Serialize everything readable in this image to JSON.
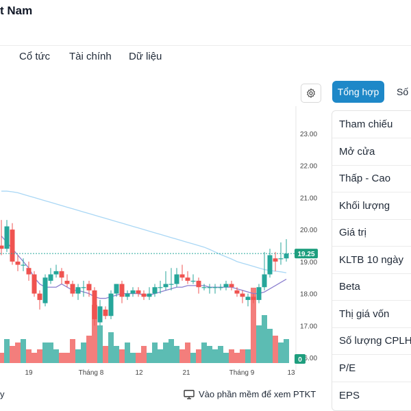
{
  "header": {
    "title": "t Nam"
  },
  "tabs": [
    {
      "label": "Cổ tức"
    },
    {
      "label": "Tài chính"
    },
    {
      "label": "Dữ liệu"
    }
  ],
  "icons": {
    "settings": "gear-icon",
    "monitor": "monitor-icon"
  },
  "colors": {
    "up": "#26a69a",
    "down": "#ef5350",
    "ma_short": "#8b7fcf",
    "ma_long": "#a9d7f5",
    "accent": "#1e88c8"
  },
  "chart_data": {
    "type": "candlestick",
    "y_ticks": [
      "23.00",
      "22.00",
      "21.00",
      "20.00",
      "19.00",
      "18.00",
      "17.00",
      "16.00"
    ],
    "ylim": [
      16,
      23.5
    ],
    "x_ticks": [
      "19",
      "Tháng 8",
      "12",
      "21",
      "Tháng 9",
      "13"
    ],
    "last_price_label": "19.25",
    "last_price": 19.25,
    "volume_label": "0",
    "candles": [
      [
        19.5,
        19.4,
        20.3,
        19.2
      ],
      [
        19.4,
        20.1,
        20.3,
        19.3
      ],
      [
        20.0,
        19.0,
        20.2,
        18.9
      ],
      [
        19.0,
        18.9,
        19.2,
        18.7
      ],
      [
        18.9,
        18.9,
        19.1,
        18.7
      ],
      [
        18.8,
        18.6,
        19.0,
        18.4
      ],
      [
        18.6,
        18.0,
        18.7,
        17.9
      ],
      [
        18.0,
        17.8,
        18.1,
        17.5
      ],
      [
        17.7,
        18.5,
        18.6,
        17.6
      ],
      [
        18.4,
        18.6,
        18.8,
        18.3
      ],
      [
        18.6,
        18.7,
        18.9,
        18.5
      ],
      [
        18.7,
        18.5,
        18.8,
        18.3
      ],
      [
        18.4,
        18.3,
        18.6,
        18.2
      ],
      [
        18.3,
        18.0,
        18.4,
        17.9
      ],
      [
        18.0,
        18.2,
        18.3,
        17.8
      ],
      [
        18.2,
        18.2,
        18.4,
        17.9
      ],
      [
        18.3,
        18.1,
        18.4,
        17.9
      ],
      [
        18.1,
        17.2,
        18.2,
        17.0
      ],
      [
        17.1,
        17.6,
        17.8,
        17.0
      ],
      [
        17.5,
        17.3,
        17.6,
        17.2
      ],
      [
        17.3,
        18.0,
        18.1,
        17.2
      ],
      [
        18.0,
        18.3,
        18.3,
        17.9
      ],
      [
        18.3,
        17.9,
        18.4,
        17.7
      ],
      [
        17.9,
        18.0,
        18.1,
        17.8
      ],
      [
        18.0,
        18.1,
        18.2,
        17.9
      ],
      [
        18.1,
        18.0,
        18.2,
        17.9
      ],
      [
        18.0,
        17.9,
        18.1,
        17.8
      ],
      [
        17.9,
        18.0,
        18.2,
        17.8
      ],
      [
        18.0,
        18.2,
        18.3,
        17.9
      ],
      [
        18.2,
        18.2,
        18.4,
        18.0
      ],
      [
        18.2,
        18.3,
        18.7,
        18.1
      ],
      [
        18.3,
        18.3,
        18.8,
        18.1
      ],
      [
        18.3,
        18.6,
        18.8,
        18.2
      ],
      [
        18.6,
        18.5,
        18.9,
        18.4
      ],
      [
        18.5,
        18.4,
        18.7,
        18.3
      ],
      [
        18.4,
        18.4,
        18.6,
        18.3
      ],
      [
        18.4,
        18.2,
        18.5,
        18.0
      ],
      [
        18.2,
        18.2,
        18.3,
        18.1
      ],
      [
        18.2,
        18.2,
        18.3,
        18.0
      ],
      [
        18.2,
        18.2,
        18.3,
        18.0
      ],
      [
        18.2,
        18.2,
        18.3,
        18.1
      ],
      [
        18.2,
        18.3,
        18.4,
        18.1
      ],
      [
        18.3,
        18.2,
        18.4,
        18.1
      ],
      [
        18.1,
        18.0,
        18.2,
        17.9
      ],
      [
        18.0,
        17.9,
        18.1,
        17.7
      ],
      [
        17.8,
        17.9,
        18.0,
        17.6
      ],
      [
        17.9,
        17.8,
        18.0,
        17.7
      ],
      [
        17.8,
        18.2,
        18.3,
        17.7
      ],
      [
        18.2,
        18.6,
        19.3,
        18.1
      ],
      [
        18.6,
        19.2,
        19.4,
        18.5
      ],
      [
        19.1,
        19.0,
        19.3,
        18.7
      ],
      [
        19.1,
        19.1,
        19.6,
        18.9
      ],
      [
        19.1,
        19.25,
        19.7,
        19.0
      ]
    ],
    "ma_short": [
      19.8,
      19.6,
      19.4,
      19.2,
      19.0,
      18.8,
      18.5,
      18.3,
      18.2,
      18.2,
      18.2,
      18.3,
      18.2,
      18.1,
      18.1,
      18.05,
      18.0,
      17.9,
      17.85,
      17.85,
      17.9,
      17.95,
      18.0,
      18.0,
      18.0,
      18.0,
      17.95,
      17.95,
      18.0,
      18.05,
      18.1,
      18.15,
      18.2,
      18.2,
      18.25,
      18.25,
      18.25,
      18.25,
      18.2,
      18.2,
      18.2,
      18.2,
      18.2,
      18.15,
      18.1,
      18.05,
      18.0,
      18.0,
      18.05,
      18.15,
      18.25,
      18.35,
      18.45
    ],
    "ma_long": [
      21.2,
      21.2,
      21.18,
      21.15,
      21.1,
      21.05,
      21.0,
      20.95,
      20.9,
      20.85,
      20.8,
      20.75,
      20.7,
      20.65,
      20.6,
      20.55,
      20.5,
      20.45,
      20.4,
      20.35,
      20.3,
      20.25,
      20.2,
      20.15,
      20.1,
      20.05,
      20.0,
      19.95,
      19.9,
      19.85,
      19.8,
      19.75,
      19.7,
      19.65,
      19.6,
      19.55,
      19.5,
      19.45,
      19.38,
      19.3,
      19.22,
      19.15,
      19.08,
      19.0,
      18.95,
      18.9,
      18.85,
      18.8,
      18.75,
      18.72,
      18.7,
      18.68,
      18.65
    ],
    "volume": [
      0.15,
      0.35,
      0.25,
      0.3,
      0.35,
      0.2,
      0.15,
      0.2,
      0.3,
      0.3,
      0.2,
      0.15,
      0.15,
      0.35,
      0.2,
      0.3,
      0.4,
      0.85,
      0.55,
      0.25,
      0.45,
      0.25,
      0.2,
      0.3,
      0.15,
      0.15,
      0.25,
      0.15,
      0.3,
      0.2,
      0.3,
      0.35,
      0.25,
      0.2,
      0.3,
      0.15,
      0.2,
      0.3,
      0.25,
      0.2,
      0.25,
      0.15,
      0.2,
      0.15,
      0.2,
      0.2,
      1.1,
      0.55,
      0.7,
      0.5,
      0.4,
      0.3,
      0.35
    ]
  },
  "footer": {
    "left_text": "y",
    "ptkt_label": "Vào phần mềm để xem PTKT"
  },
  "sidebar": {
    "active_tab": "Tổng hợp",
    "next_tab": "Số l",
    "rows": [
      "Tham chiếu",
      "Mở cửa",
      "Thấp - Cao",
      "Khối lượng",
      "Giá trị",
      "KLTB 10 ngày",
      "Beta",
      "Thị giá vốn",
      "Số lượng CPLH",
      "P/E",
      "EPS"
    ]
  }
}
